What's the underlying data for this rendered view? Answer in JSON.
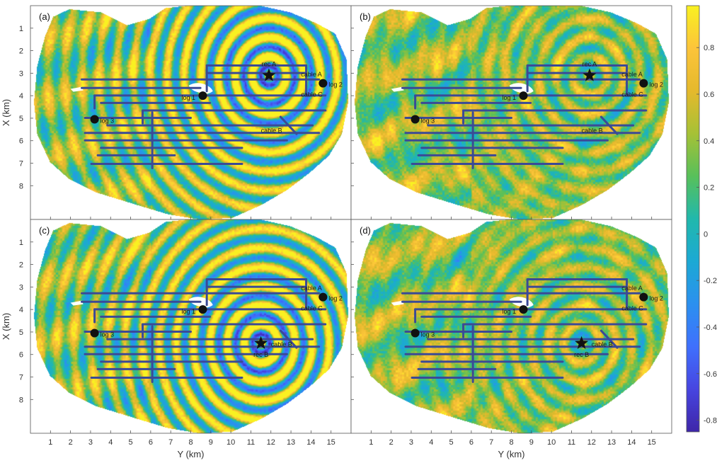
{
  "colors": {
    "colormap": [
      "#3e26a8",
      "#4745e0",
      "#3f70fd",
      "#2b90ef",
      "#1ca9d4",
      "#21b8ac",
      "#58c05a",
      "#a6c136",
      "#e5b92c",
      "#fcc43a",
      "#f9f121"
    ],
    "cable": "#3b4a96",
    "marker": "#111111",
    "background": "#ffffff",
    "axis": "#555555"
  },
  "chart_data": [
    {
      "type": "heatmap",
      "panel": "(a)",
      "xlabel": "",
      "ylabel": "X (km)",
      "xlim": [
        0,
        16
      ],
      "ylim": [
        0,
        9.5
      ],
      "xticks": [
        1,
        2,
        3,
        4,
        5,
        6,
        7,
        8,
        9,
        10,
        11,
        12,
        13,
        14,
        15
      ],
      "yticks": [
        1,
        2,
        3,
        4,
        5,
        6,
        7,
        8
      ],
      "source": {
        "label": "rec A",
        "y_km": 11.9,
        "x_km": 3.1
      },
      "ring_strength": 1.0,
      "ring_wavelength_km": 0.85,
      "logs": [
        {
          "label": "log 1",
          "y_km": 8.6,
          "x_km": 4.0
        },
        {
          "label": "log 2",
          "y_km": 14.6,
          "x_km": 3.45
        },
        {
          "label": "log 3",
          "y_km": 3.2,
          "x_km": 5.05
        }
      ],
      "cables": [
        {
          "label": "cable A",
          "y_km": 13.5,
          "x_km": 3.05
        },
        {
          "label": "cable C",
          "y_km": 13.5,
          "x_km": 3.95
        },
        {
          "label": "cable B",
          "y_km": 11.5,
          "x_km": 5.55
        }
      ]
    },
    {
      "type": "heatmap",
      "panel": "(b)",
      "xlabel": "",
      "ylabel": "",
      "xlim": [
        0,
        16
      ],
      "ylim": [
        0,
        9.5
      ],
      "xticks": [
        1,
        2,
        3,
        4,
        5,
        6,
        7,
        8,
        9,
        10,
        11,
        12,
        13,
        14,
        15
      ],
      "yticks": [
        1,
        2,
        3,
        4,
        5,
        6,
        7,
        8
      ],
      "source": {
        "label": "rec A",
        "y_km": 11.9,
        "x_km": 3.1
      },
      "ring_strength": 0.35,
      "ring_wavelength_km": 0.85,
      "logs": [
        {
          "label": "log 1",
          "y_km": 8.6,
          "x_km": 4.0
        },
        {
          "label": "log 2",
          "y_km": 14.6,
          "x_km": 3.45
        },
        {
          "label": "log 3",
          "y_km": 3.2,
          "x_km": 5.05
        }
      ],
      "cables": [
        {
          "label": "cable A",
          "y_km": 13.5,
          "x_km": 3.05
        },
        {
          "label": "cable C",
          "y_km": 13.5,
          "x_km": 3.95
        },
        {
          "label": "cable B",
          "y_km": 11.5,
          "x_km": 5.55
        }
      ]
    },
    {
      "type": "heatmap",
      "panel": "(c)",
      "xlabel": "Y (km)",
      "ylabel": "X (km)",
      "xlim": [
        0,
        16
      ],
      "ylim": [
        0,
        9.5
      ],
      "xticks": [
        1,
        2,
        3,
        4,
        5,
        6,
        7,
        8,
        9,
        10,
        11,
        12,
        13,
        14,
        15
      ],
      "yticks": [
        1,
        2,
        3,
        4,
        5,
        6,
        7,
        8
      ],
      "source": {
        "label": "rec B",
        "y_km": 11.5,
        "x_km": 5.5
      },
      "ring_strength": 1.0,
      "ring_wavelength_km": 0.85,
      "logs": [
        {
          "label": "log 1",
          "y_km": 8.6,
          "x_km": 4.0
        },
        {
          "label": "log 2",
          "y_km": 14.6,
          "x_km": 3.45
        },
        {
          "label": "log 3",
          "y_km": 3.2,
          "x_km": 5.05
        }
      ],
      "cables": [
        {
          "label": "cable A",
          "y_km": 13.5,
          "x_km": 3.05
        },
        {
          "label": "cable C",
          "y_km": 13.5,
          "x_km": 3.95
        },
        {
          "label": "cable B",
          "y_km": 12.0,
          "x_km": 5.55
        }
      ]
    },
    {
      "type": "heatmap",
      "panel": "(d)",
      "xlabel": "Y (km)",
      "ylabel": "",
      "xlim": [
        0,
        16
      ],
      "ylim": [
        0,
        9.5
      ],
      "xticks": [
        1,
        2,
        3,
        4,
        5,
        6,
        7,
        8,
        9,
        10,
        11,
        12,
        13,
        14,
        15
      ],
      "yticks": [
        1,
        2,
        3,
        4,
        5,
        6,
        7,
        8
      ],
      "source": {
        "label": "rec B",
        "y_km": 11.5,
        "x_km": 5.5
      },
      "ring_strength": 0.35,
      "ring_wavelength_km": 0.85,
      "logs": [
        {
          "label": "log 1",
          "y_km": 8.6,
          "x_km": 4.0
        },
        {
          "label": "log 2",
          "y_km": 14.6,
          "x_km": 3.45
        },
        {
          "label": "log 3",
          "y_km": 3.2,
          "x_km": 5.05
        }
      ],
      "cables": [
        {
          "label": "cable A",
          "y_km": 13.5,
          "x_km": 3.05
        },
        {
          "label": "cable C",
          "y_km": 13.5,
          "x_km": 3.95
        },
        {
          "label": "cable B",
          "y_km": 12.0,
          "x_km": 5.55
        }
      ]
    }
  ],
  "colorbar": {
    "min": -0.85,
    "max": 0.98,
    "ticks": [
      0.8,
      0.6,
      0.4,
      0.2,
      0,
      -0.2,
      -0.4,
      -0.6,
      -0.8
    ],
    "tick_labels": [
      "0.8",
      "0.6",
      "0.4",
      "0.2",
      "0",
      "-0.2",
      "-0.4",
      "-0.6",
      "-0.8"
    ]
  }
}
